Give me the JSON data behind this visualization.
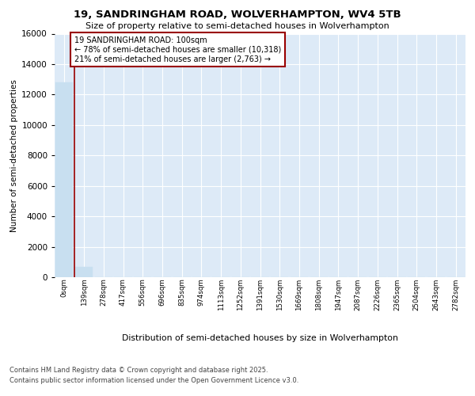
{
  "title": "19, SANDRINGHAM ROAD, WOLVERHAMPTON, WV4 5TB",
  "subtitle": "Size of property relative to semi-detached houses in Wolverhampton",
  "xlabel": "Distribution of semi-detached houses by size in Wolverhampton",
  "ylabel": "Number of semi-detached properties",
  "footer1": "Contains HM Land Registry data © Crown copyright and database right 2025.",
  "footer2": "Contains public sector information licensed under the Open Government Licence v3.0.",
  "annotation_title": "19 SANDRINGHAM ROAD: 100sqm",
  "annotation_line1": "← 78% of semi-detached houses are smaller (10,318)",
  "annotation_line2": "21% of semi-detached houses are larger (2,763) →",
  "bar_color": "#c8dff0",
  "vline_color": "#990000",
  "annotation_box_edge": "#990000",
  "annotation_box_face": "white",
  "plot_bg_color": "#ddeaf7",
  "categories": [
    "0sqm",
    "139sqm",
    "278sqm",
    "417sqm",
    "556sqm",
    "696sqm",
    "835sqm",
    "974sqm",
    "1113sqm",
    "1252sqm",
    "1391sqm",
    "1530sqm",
    "1669sqm",
    "1808sqm",
    "1947sqm",
    "2087sqm",
    "2226sqm",
    "2365sqm",
    "2504sqm",
    "2643sqm",
    "2782sqm"
  ],
  "values": [
    12800,
    700,
    10,
    5,
    2,
    2,
    2,
    2,
    1,
    1,
    1,
    1,
    1,
    1,
    1,
    1,
    1,
    1,
    1,
    1,
    1
  ],
  "ylim": [
    0,
    16000
  ],
  "yticks": [
    0,
    2000,
    4000,
    6000,
    8000,
    10000,
    12000,
    14000,
    16000
  ],
  "vline_x": 0.5
}
